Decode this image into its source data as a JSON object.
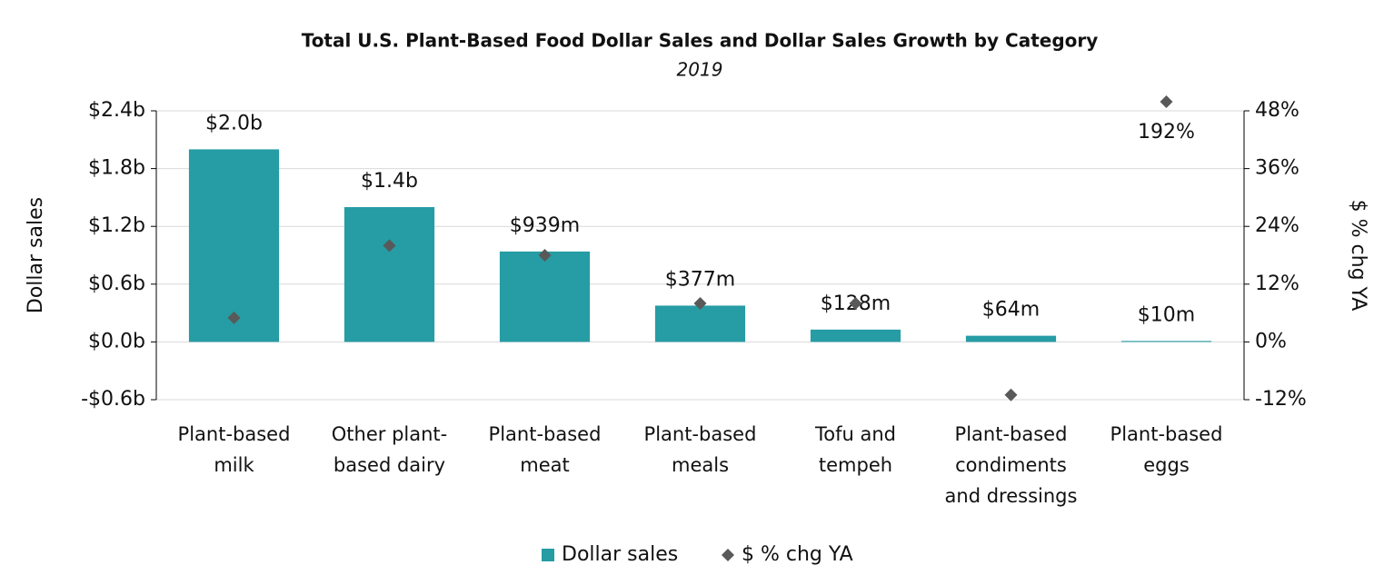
{
  "chart_data": {
    "type": "bar",
    "title": "Total U.S. Plant-Based Food Dollar Sales and Dollar Sales Growth by Category",
    "subtitle": "2019",
    "y_label": "Dollar sales",
    "y2_label": "$ % chg YA",
    "categories": [
      "Plant-based\nmilk",
      "Other plant-\nbased dairy",
      "Plant-based\nmeat",
      "Plant-based\nmeals",
      "Tofu and\ntempeh",
      "Plant-based\ncondiments\nand dressings",
      "Plant-based\neggs"
    ],
    "series": [
      {
        "name": "Dollar sales",
        "type": "bar",
        "color": "#269ca4",
        "values": [
          2.0,
          1.4,
          0.939,
          0.377,
          0.128,
          0.064,
          0.01
        ],
        "value_labels": [
          "$2.0b",
          "$1.4b",
          "$939m",
          "$377m",
          "$128m",
          "$64m",
          "$10m"
        ]
      },
      {
        "name": "$ % chg YA",
        "type": "scatter",
        "axis": "y2",
        "color": "#595959",
        "values": [
          5,
          20,
          18,
          8,
          8,
          -11,
          192
        ],
        "value_labels": [
          null,
          null,
          null,
          null,
          null,
          null,
          "192%"
        ]
      }
    ],
    "ylim": [
      -0.6,
      2.4
    ],
    "yticks": [
      {
        "value": -0.6,
        "label": "-$0.6b"
      },
      {
        "value": 0.0,
        "label": "$0.0b"
      },
      {
        "value": 0.6,
        "label": "$0.6b"
      },
      {
        "value": 1.2,
        "label": "$1.2b"
      },
      {
        "value": 1.8,
        "label": "$1.8b"
      },
      {
        "value": 2.4,
        "label": "$2.4b"
      }
    ],
    "y2lim": [
      -12,
      48
    ],
    "y2ticks": [
      {
        "value": -12,
        "label": "-12%"
      },
      {
        "value": 0,
        "label": "0%"
      },
      {
        "value": 12,
        "label": "12%"
      },
      {
        "value": 24,
        "label": "24%"
      },
      {
        "value": 36,
        "label": "36%"
      },
      {
        "value": 48,
        "label": "48%"
      }
    ],
    "grid": true,
    "legend": "bottom"
  }
}
